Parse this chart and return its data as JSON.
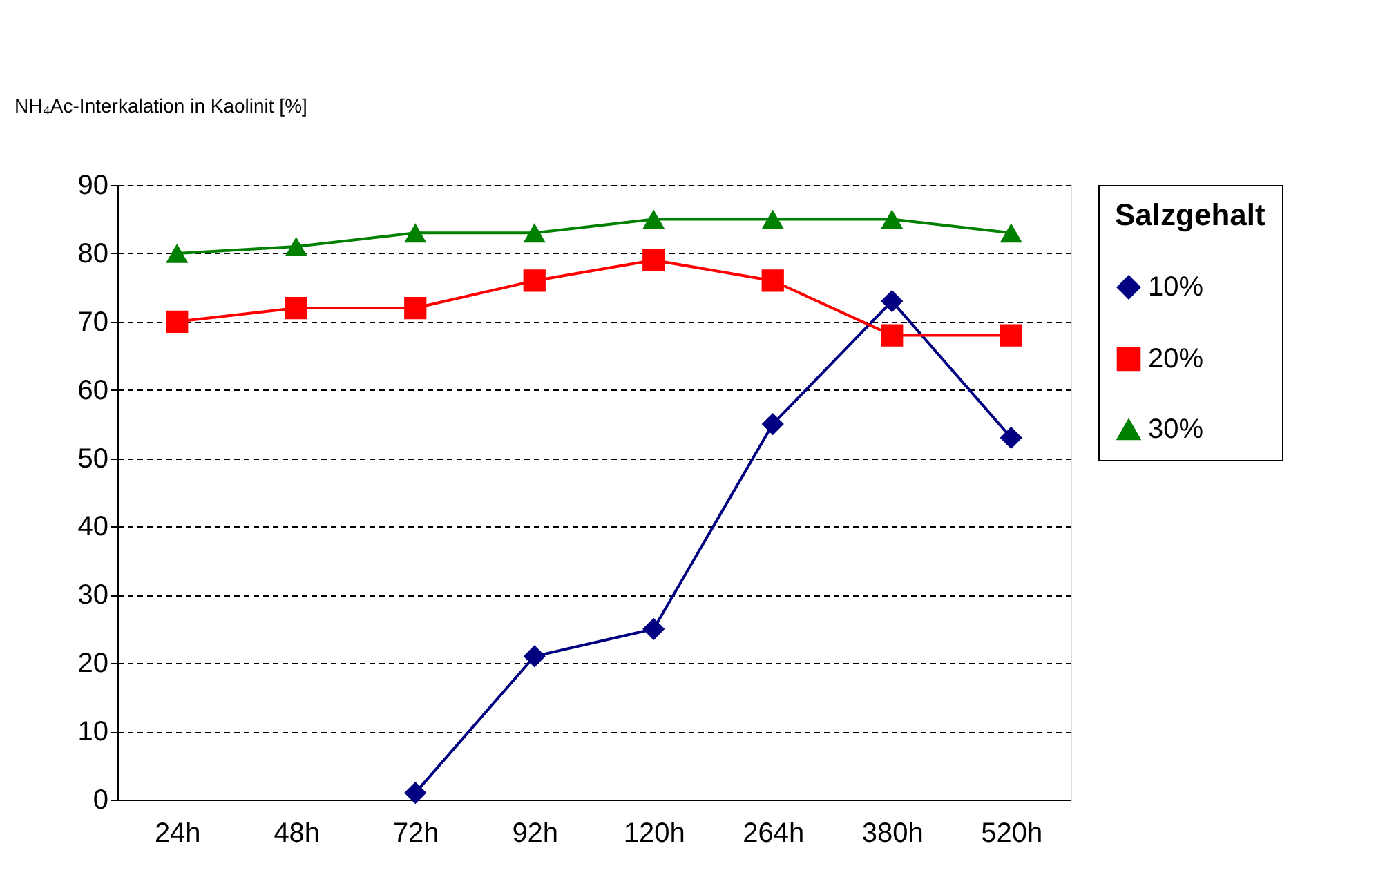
{
  "chart_data": {
    "type": "line",
    "ylabel": "NH₄Ac-Interkalation in Kaolinit [%]",
    "legend_title": "Salzgehalt",
    "legend": "right",
    "grid": "y",
    "line_style": "solid",
    "categories": [
      "24h",
      "48h",
      "72h",
      "92h",
      "120h",
      "264h",
      "380h",
      "520h"
    ],
    "ylim": [
      0,
      90
    ],
    "yticks": [
      0,
      10,
      20,
      30,
      40,
      50,
      60,
      70,
      80,
      90
    ],
    "series": [
      {
        "name": "10%",
        "color": "#000080",
        "marker": "diamond",
        "values": [
          null,
          null,
          1,
          21,
          25,
          55,
          73,
          53
        ]
      },
      {
        "name": "20%",
        "color": "#ff0000",
        "marker": "square",
        "values": [
          70,
          72,
          72,
          76,
          79,
          76,
          68,
          68
        ]
      },
      {
        "name": "30%",
        "color": "#008000",
        "marker": "triangle",
        "values": [
          80,
          81,
          83,
          83,
          85,
          85,
          85,
          83
        ]
      }
    ]
  }
}
